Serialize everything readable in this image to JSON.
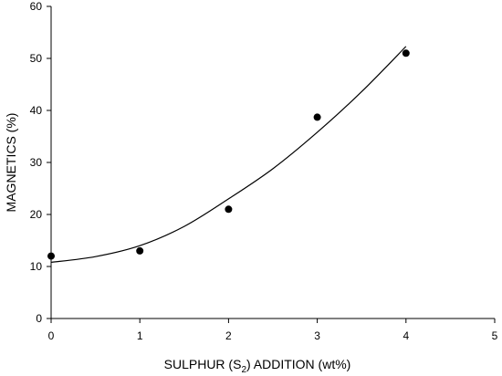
{
  "chart_data": {
    "type": "scatter",
    "title": "",
    "xlabel": {
      "main": "SULPHUR (S",
      "sub": "2",
      "tail": ") ADDITION (wt%)"
    },
    "ylabel": "MAGNETICS (%)",
    "xlim": [
      0,
      5
    ],
    "ylim": [
      0,
      60
    ],
    "xticks": [
      "0",
      "1",
      "2",
      "3",
      "4",
      "5"
    ],
    "yticks": [
      "0",
      "10",
      "20",
      "30",
      "40",
      "50",
      "60"
    ],
    "grid": false,
    "series": [
      {
        "x": [
          0,
          1,
          2,
          3,
          4
        ],
        "y": [
          12,
          13,
          21,
          38.7,
          51
        ]
      }
    ],
    "fit": {
      "type": "quadratic",
      "x": [
        0,
        0.5,
        1,
        1.5,
        2,
        2.5,
        3,
        3.5,
        4
      ],
      "y": [
        10.8,
        11.9,
        14,
        17.7,
        23,
        28.8,
        35.8,
        43.6,
        52.3
      ]
    },
    "colors": {
      "points": "#000000",
      "line": "#000000",
      "axis": "#000000"
    }
  }
}
